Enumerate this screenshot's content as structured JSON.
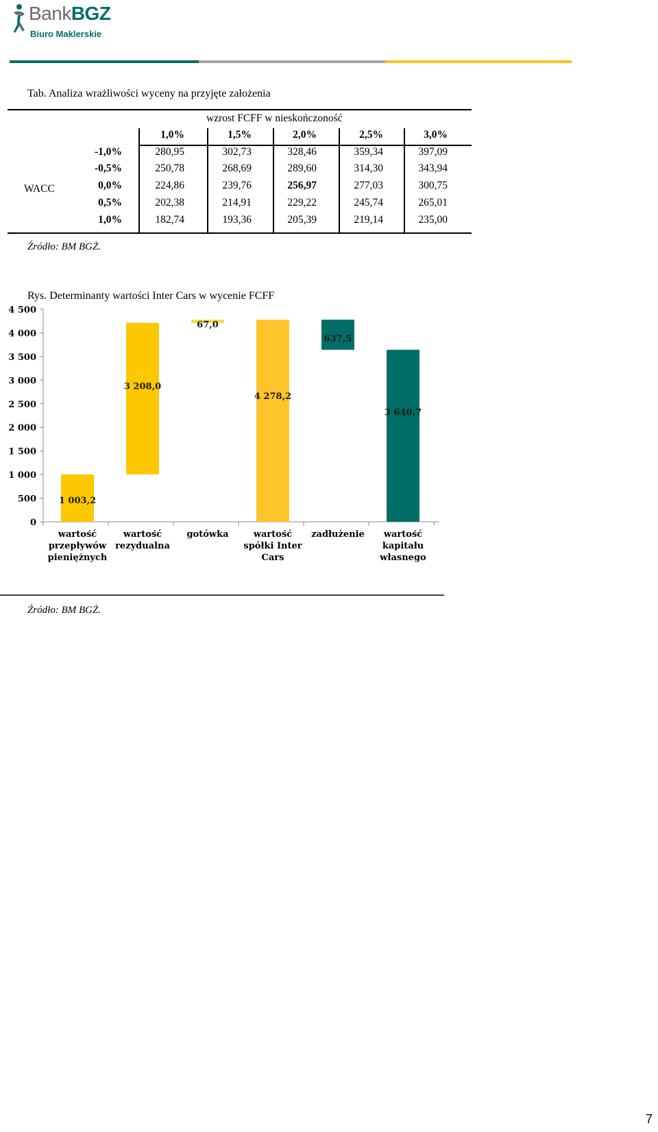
{
  "header": {
    "logo_bank": "Bank",
    "logo_bgz": "BGZ",
    "logo_sub": "Biuro Maklerskie",
    "bar_colors": [
      "#006e66",
      "#a5a5a5",
      "#f5c518"
    ]
  },
  "table": {
    "title": "Tab. Analiza wrażliwości wyceny na przyjęte założenia",
    "col_group_label": "wzrost FCFF w nieskończoność",
    "row_group_label": "WACC",
    "columns": [
      "1,0%",
      "1,5%",
      "2,0%",
      "2,5%",
      "3,0%"
    ],
    "rows": [
      {
        "label": "-1,0%",
        "values": [
          "280,95",
          "302,73",
          "328,46",
          "359,34",
          "397,09"
        ]
      },
      {
        "label": "-0,5%",
        "values": [
          "250,78",
          "268,69",
          "289,60",
          "314,30",
          "343,94"
        ]
      },
      {
        "label": "0,0%",
        "values": [
          "224,86",
          "239,76",
          "256,97",
          "277,03",
          "300,75"
        ]
      },
      {
        "label": "0,5%",
        "values": [
          "202,38",
          "214,91",
          "229,22",
          "245,74",
          "265,01"
        ]
      },
      {
        "label": "1,0%",
        "values": [
          "182,74",
          "193,36",
          "205,39",
          "219,14",
          "235,00"
        ]
      }
    ],
    "highlight": {
      "row": 2,
      "col": 2
    },
    "source": "Źródło: BM BGŻ."
  },
  "chart_title": "Rys. Determinanty wartości Inter Cars w wycenie FCFF",
  "chart_data": {
    "type": "bar",
    "subtype": "waterfall",
    "title": "Rys. Determinanty wartości Inter Cars w wycenie FCFF",
    "categories": [
      [
        "wartość",
        "przepływów",
        "pieniężnych"
      ],
      [
        "wartość",
        "rezydualna"
      ],
      [
        "gotówka"
      ],
      [
        "wartość",
        "spółki Inter",
        "Cars"
      ],
      [
        "zadłużenie"
      ],
      [
        "wartość",
        "kapitału",
        "własnego"
      ]
    ],
    "bars": [
      {
        "start": 0,
        "end": 1003.2,
        "label": "1 003,2",
        "color": "#fdc800"
      },
      {
        "start": 1003.2,
        "end": 4211.2,
        "label": "3 208,0",
        "color": "#fdc800"
      },
      {
        "start": 4211.2,
        "end": 4278.2,
        "label": "67,0",
        "color": "#f5dd43"
      },
      {
        "start": 0,
        "end": 4278.2,
        "label": "4 278,2",
        "color": "#fdc52a"
      },
      {
        "start": 3640.7,
        "end": 4278.2,
        "label": "637,5",
        "color": "#006e66"
      },
      {
        "start": 0,
        "end": 3640.7,
        "label": "3 640,7",
        "color": "#006e66"
      }
    ],
    "yticks": [
      "0",
      "500",
      "1 000",
      "1 500",
      "2 000",
      "2 500",
      "3 000",
      "3 500",
      "4 000",
      "4 500"
    ],
    "ylim": [
      0,
      4500
    ],
    "grid": false,
    "legend": "none"
  },
  "chart_source": "Źródło: BM BGŻ.",
  "page_number": "7"
}
